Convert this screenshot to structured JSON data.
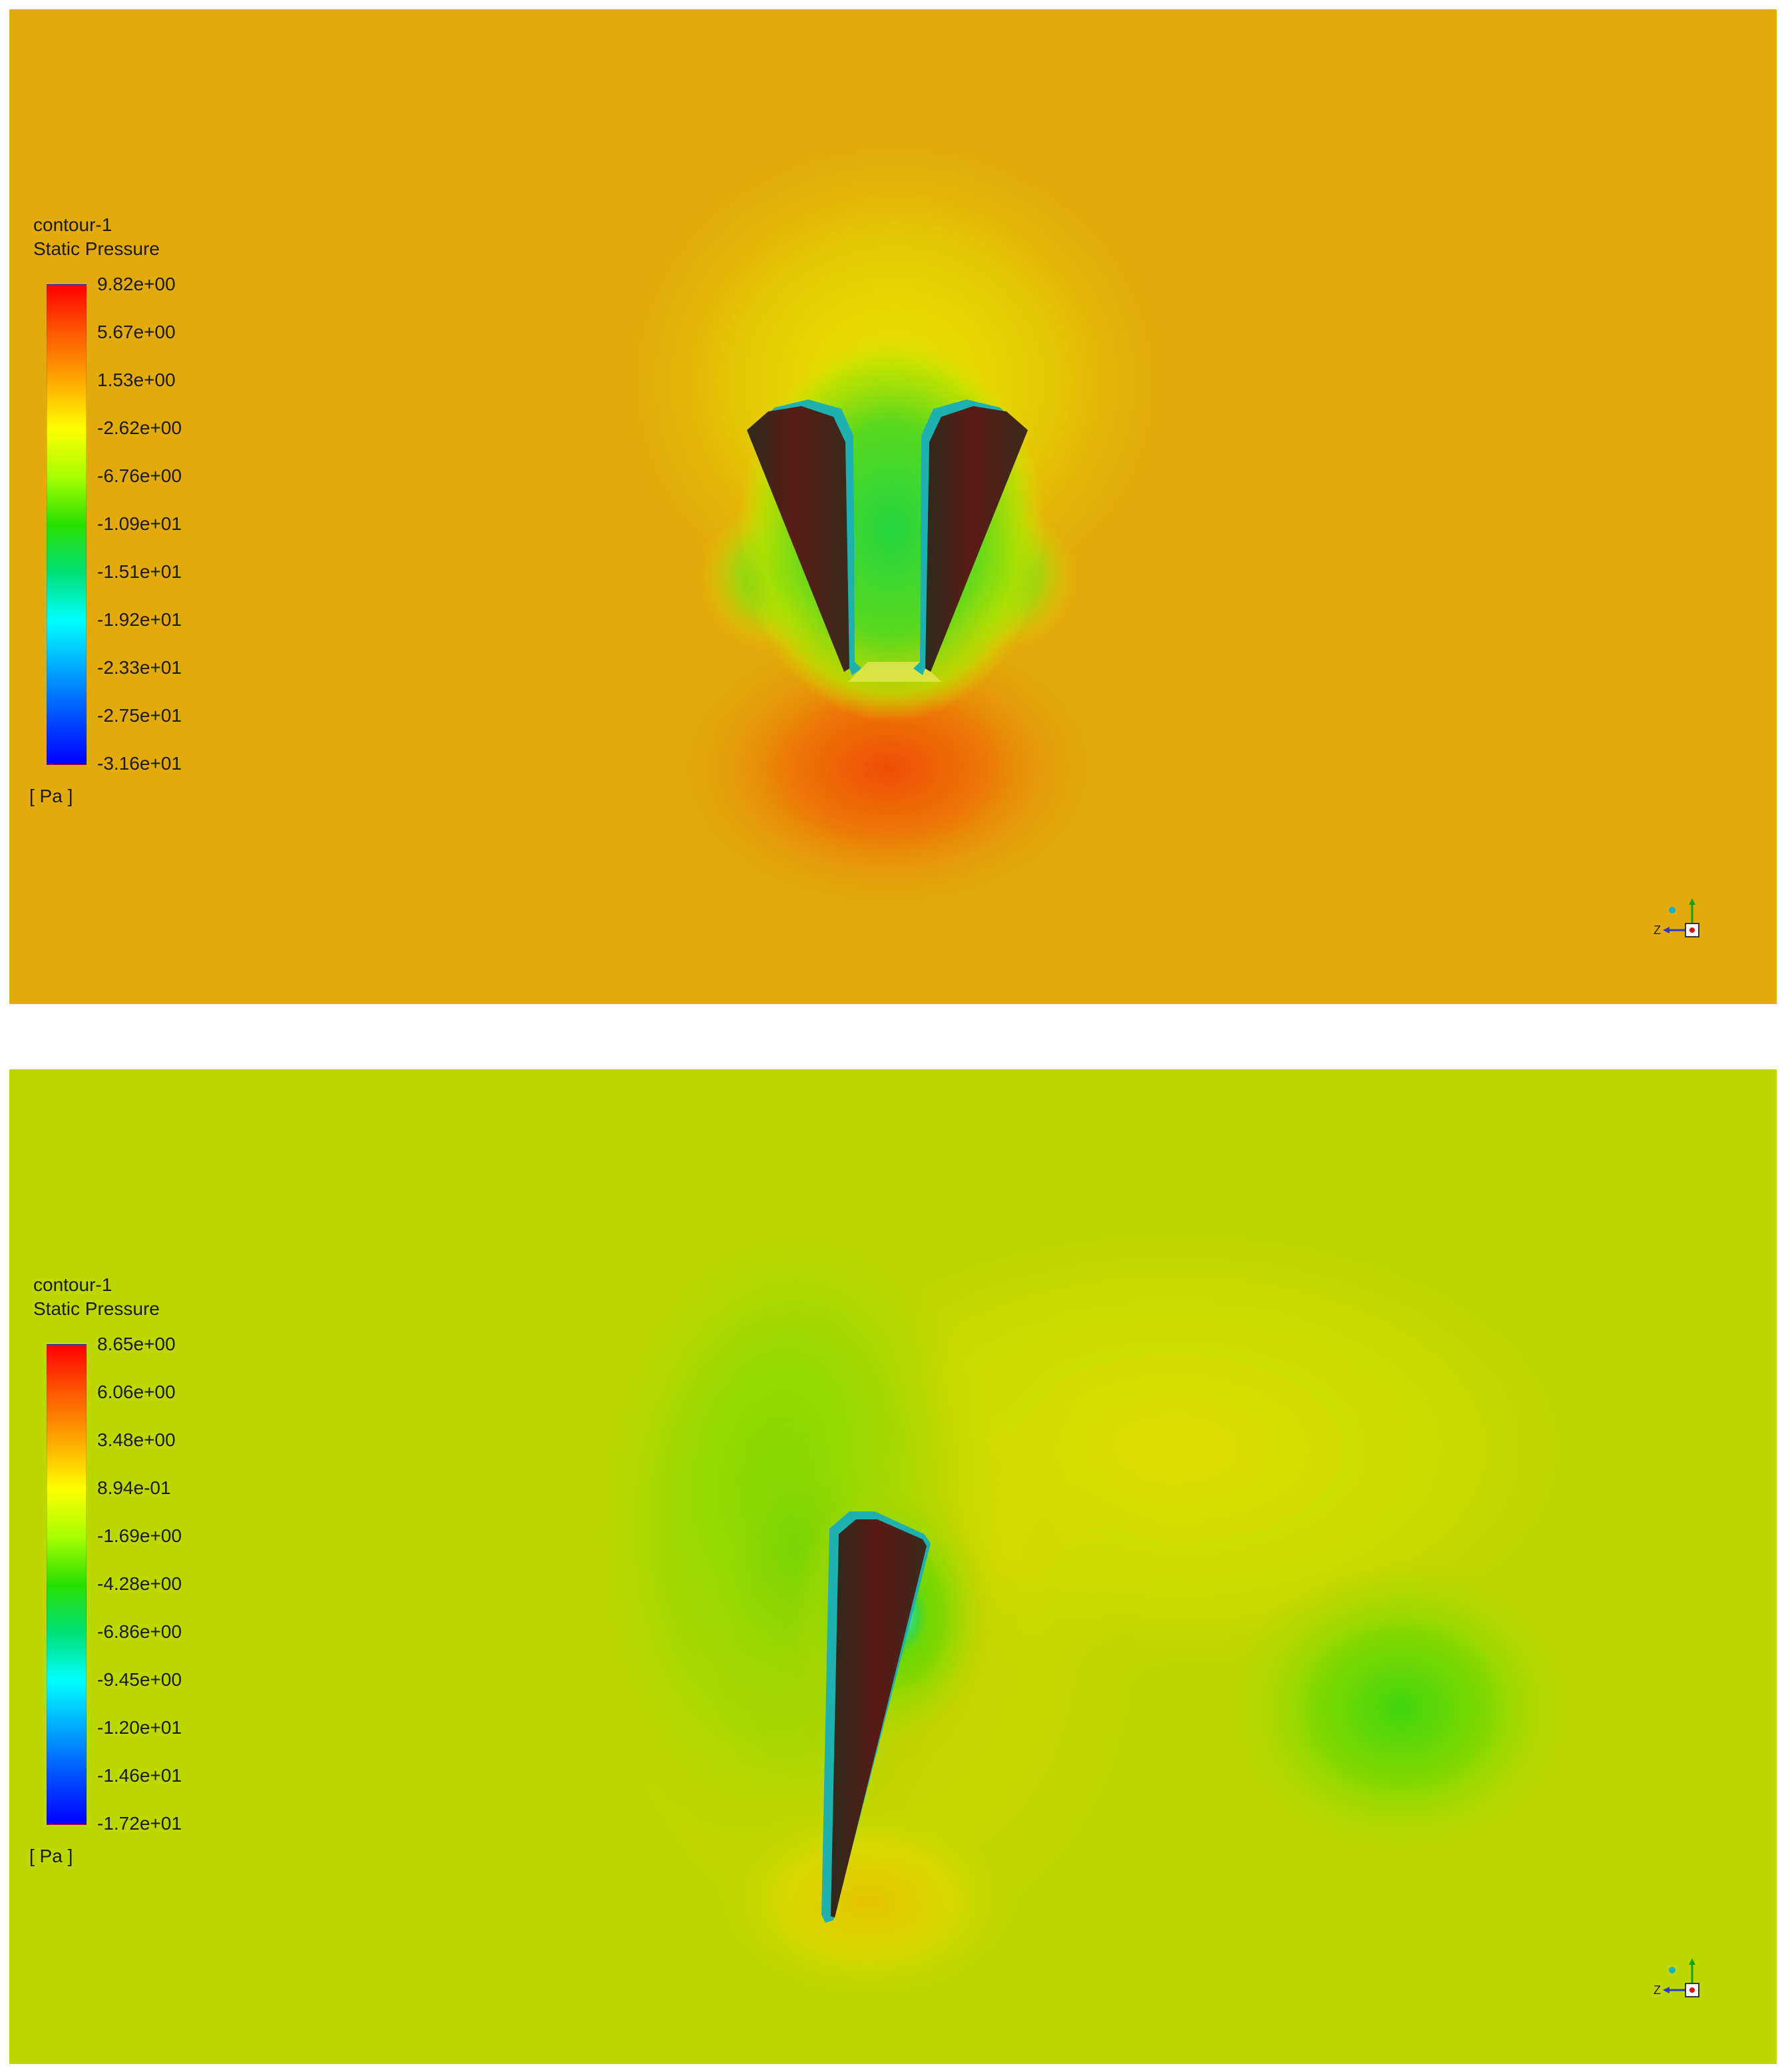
{
  "panels": [
    {
      "legend": {
        "name": "contour-1",
        "variable": "Static Pressure",
        "ticks": [
          "9.82e+00",
          "5.67e+00",
          "1.53e+00",
          "-2.62e+00",
          "-6.76e+00",
          "-1.09e+01",
          "-1.51e+01",
          "-1.92e+01",
          "-2.33e+01",
          "-2.75e+01",
          "-3.16e+01"
        ],
        "unit": "[ Pa ]"
      },
      "background_color": "#e2aa0a",
      "axis_triad": {
        "label": "Z"
      }
    },
    {
      "legend": {
        "name": "contour-1",
        "variable": "Static Pressure",
        "ticks": [
          "8.65e+00",
          "6.06e+00",
          "3.48e+00",
          "8.94e-01",
          "-1.69e+00",
          "-4.28e+00",
          "-6.86e+00",
          "-9.45e+00",
          "-1.20e+01",
          "-1.46e+01",
          "-1.72e+01"
        ],
        "unit": "[ Pa ]"
      },
      "background_color": "#bcd800",
      "axis_triad": {
        "label": "Z"
      }
    }
  ]
}
